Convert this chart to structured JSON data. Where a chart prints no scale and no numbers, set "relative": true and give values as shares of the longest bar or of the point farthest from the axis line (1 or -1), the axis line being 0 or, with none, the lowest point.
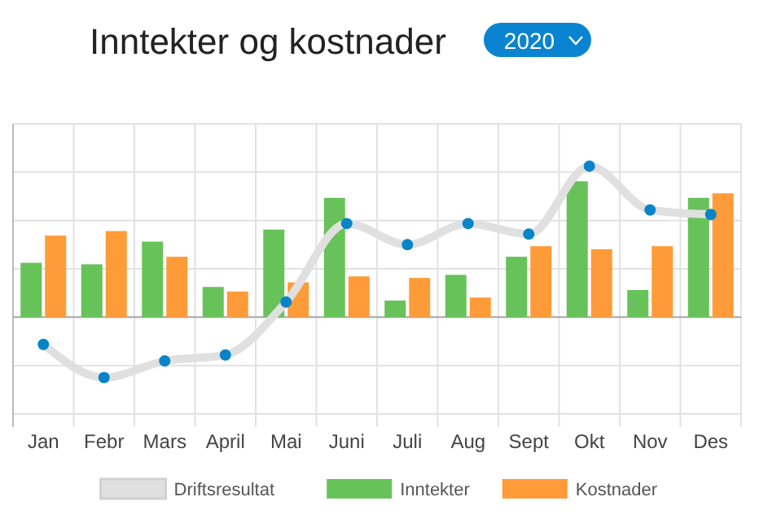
{
  "chart_data": {
    "type": "bar",
    "title": "Inntekter og kostnader",
    "subtitle": "2020",
    "relative": true,
    "grid": true,
    "legend": "bottom",
    "categories": [
      "Jan",
      "Febr",
      "Mars",
      "April",
      "Mai",
      "Juni",
      "Juli",
      "Aug",
      "Sept",
      "Okt",
      "Nov",
      "Des"
    ],
    "series": [
      {
        "name": "Driftsresultat",
        "type": "line",
        "color": "#e0e0e0",
        "marker": "circle",
        "values": [
          -0.18,
          -0.4,
          -0.29,
          -0.25,
          0.1,
          0.62,
          0.48,
          0.62,
          0.55,
          1,
          0.71,
          0.68
        ]
      },
      {
        "name": "Inntekter",
        "color": "#68c25a",
        "values": [
          0.36,
          0.35,
          0.5,
          0.2,
          0.58,
          0.79,
          0.11,
          0.28,
          0.4,
          0.9,
          0.18,
          0.79
        ]
      },
      {
        "name": "Kostnader",
        "color": "#ff9b38",
        "values": [
          0.54,
          0.57,
          0.4,
          0.17,
          0.23,
          0.27,
          0.26,
          0.13,
          0.47,
          0.45,
          0.47,
          0.82
        ]
      }
    ]
  }
}
